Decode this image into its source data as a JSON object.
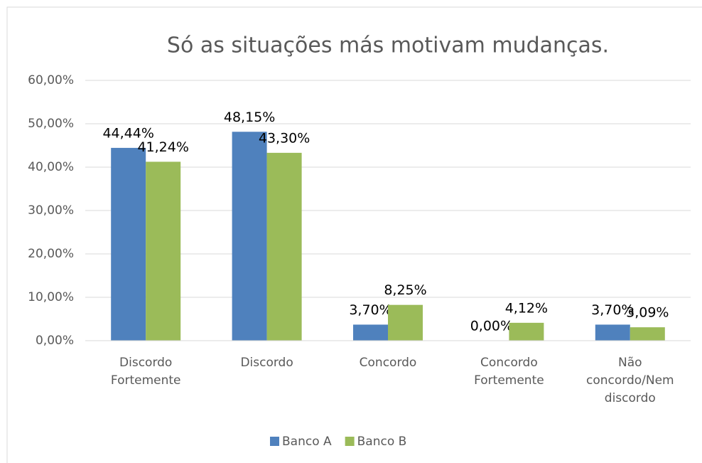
{
  "chart_data": {
    "type": "bar",
    "title": "Só as situações más motivam mudanças.",
    "categories": [
      "Discordo Fortemente",
      "Discordo",
      "Concordo",
      "Concordo Fortemente",
      "Não concordo/Nem discordo"
    ],
    "series": [
      {
        "name": "Banco A",
        "color": "#4f81bd",
        "values": [
          44.44,
          48.15,
          3.7,
          0.0,
          3.7
        ],
        "value_labels": [
          "44,44%",
          "48,15%",
          "3,70%",
          "0,00%",
          "3,70%"
        ]
      },
      {
        "name": "Banco B",
        "color": "#9bbb59",
        "values": [
          41.24,
          43.3,
          8.25,
          4.12,
          3.09
        ],
        "value_labels": [
          "41,24%",
          "43,30%",
          "8,25%",
          "4,12%",
          "3,09%"
        ]
      }
    ],
    "ylim": [
      0,
      60
    ],
    "yticks": [
      {
        "value": 0,
        "label": "0,00%"
      },
      {
        "value": 10,
        "label": "10,00%"
      },
      {
        "value": 20,
        "label": "20,00%"
      },
      {
        "value": 30,
        "label": "30,00%"
      },
      {
        "value": 40,
        "label": "40,00%"
      },
      {
        "value": 50,
        "label": "50,00%"
      },
      {
        "value": 60,
        "label": "60,00%"
      }
    ],
    "grid": true,
    "legend": "bottom"
  }
}
